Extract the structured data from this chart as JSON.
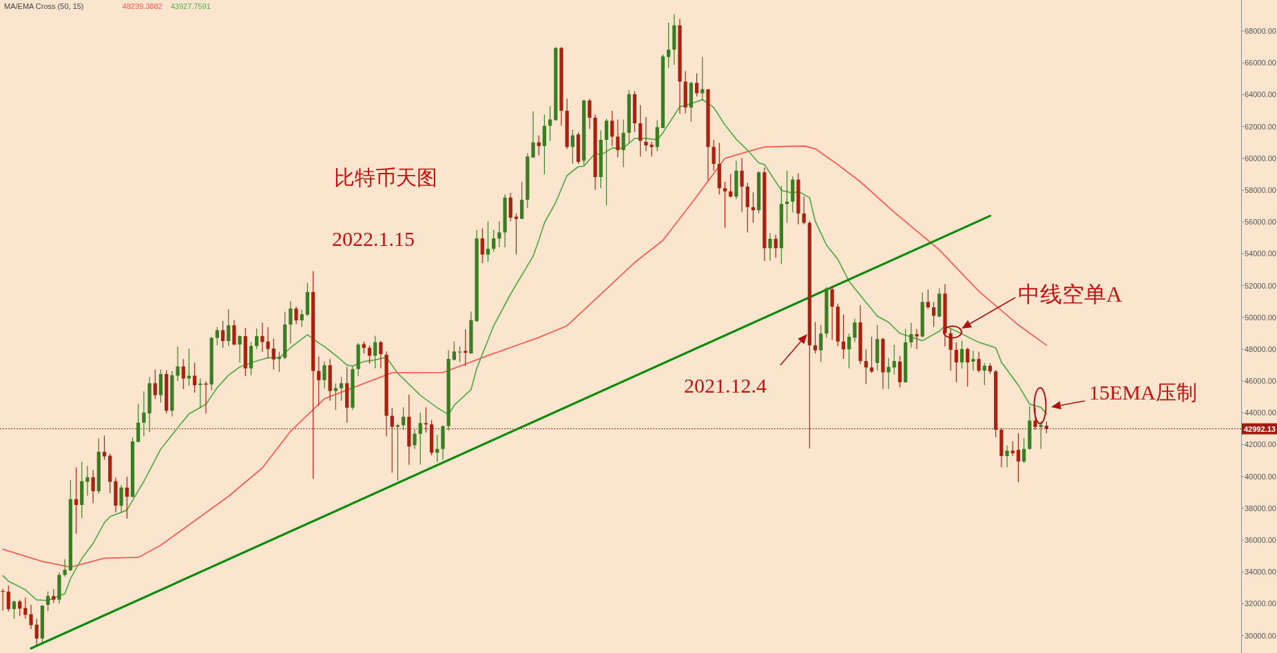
{
  "chart_data": {
    "type": "candlestick",
    "title": "MA/EMA Cross (50, 15)",
    "categories": [
      null,
      null,
      null,
      null,
      null,
      null,
      null,
      null,
      null,
      null,
      null,
      null,
      null,
      null,
      null,
      null,
      null,
      null,
      null,
      null,
      null,
      null,
      null,
      null,
      null,
      null,
      null,
      null,
      null,
      null,
      null,
      null,
      null,
      null,
      null,
      null,
      null,
      null,
      null,
      null,
      null,
      null,
      null,
      null,
      null,
      null,
      null,
      null,
      null,
      null,
      null,
      null,
      null,
      null,
      null,
      null,
      null,
      null,
      null,
      null,
      null,
      null,
      null,
      null,
      null,
      null,
      null,
      null,
      null,
      null,
      null,
      null,
      null,
      null,
      null,
      null,
      null,
      null,
      null,
      null,
      null,
      null,
      null,
      null,
      null,
      null,
      null,
      null,
      null,
      null,
      null,
      null,
      null,
      null,
      null,
      null,
      null,
      null,
      null,
      null,
      null,
      null,
      null,
      null,
      null,
      null,
      null,
      null,
      null,
      null,
      null,
      null,
      null,
      null,
      null,
      null,
      null,
      null,
      null,
      null,
      null,
      null,
      null,
      null,
      null,
      null,
      null,
      null,
      null,
      null,
      null,
      null,
      null,
      null,
      null,
      null,
      null,
      null,
      null,
      null,
      null,
      null,
      null,
      null,
      null,
      null,
      null,
      null,
      null,
      null,
      null,
      null,
      null,
      null,
      null,
      null,
      null,
      null,
      null,
      null,
      null,
      null,
      null,
      null,
      null,
      null,
      null,
      null,
      null,
      null,
      null,
      null,
      null,
      null,
      null,
      null,
      null,
      null,
      null,
      null,
      null,
      null,
      null,
      null,
      null,
      null,
      null,
      null,
      null,
      null,
      null,
      null,
      null,
      null,
      null,
      null,
      null,
      null,
      null,
      null,
      null,
      null,
      null,
      null,
      null,
      null,
      null,
      null,
      null,
      null,
      null,
      null,
      null,
      null,
      null,
      null,
      null,
      null,
      null,
      null
    ],
    "ohlc": [
      [
        32800,
        32950,
        31570,
        32750
      ],
      [
        32760,
        33140,
        31510,
        31660
      ],
      [
        31660,
        32200,
        31040,
        32140
      ],
      [
        32140,
        32250,
        31230,
        31690
      ],
      [
        31730,
        32400,
        31070,
        31300
      ],
      [
        31340,
        31930,
        30410,
        30650
      ],
      [
        30680,
        31040,
        29420,
        29810
      ],
      [
        29810,
        31900,
        29580,
        31880
      ],
      [
        31930,
        32760,
        31540,
        32480
      ],
      [
        32480,
        32920,
        32040,
        32250
      ],
      [
        32250,
        33970,
        32010,
        33810
      ],
      [
        33810,
        34800,
        33700,
        34130
      ],
      [
        34100,
        39770,
        34050,
        38570
      ],
      [
        38570,
        40560,
        36400,
        38210
      ],
      [
        38210,
        40920,
        37370,
        39700
      ],
      [
        39660,
        40670,
        38790,
        39950
      ],
      [
        39950,
        40400,
        38320,
        39070
      ],
      [
        39070,
        42390,
        38910,
        41550
      ],
      [
        41550,
        42570,
        41030,
        41260
      ],
      [
        41300,
        41450,
        38940,
        39660
      ],
      [
        39700,
        39930,
        37730,
        38160
      ],
      [
        38160,
        39460,
        37730,
        39300
      ],
      [
        39300,
        39980,
        37340,
        38720
      ],
      [
        38720,
        42440,
        38700,
        42200
      ],
      [
        42170,
        44560,
        42170,
        43380
      ],
      [
        43380,
        45340,
        42520,
        44010
      ],
      [
        43960,
        46250,
        42800,
        45860
      ],
      [
        45860,
        46720,
        44870,
        45110
      ],
      [
        45110,
        46720,
        44640,
        46440
      ],
      [
        46440,
        46680,
        43960,
        44130
      ],
      [
        44130,
        46630,
        43770,
        46360
      ],
      [
        46330,
        48170,
        46000,
        46910
      ],
      [
        46910,
        47380,
        45500,
        46160
      ],
      [
        46160,
        48040,
        45690,
        46330
      ],
      [
        46330,
        47150,
        45260,
        45730
      ],
      [
        45750,
        46160,
        44280,
        45840
      ],
      [
        45840,
        45970,
        43960,
        45770
      ],
      [
        45780,
        48790,
        45420,
        48710
      ],
      [
        48710,
        49390,
        48240,
        49190
      ],
      [
        49190,
        49770,
        48090,
        48510
      ],
      [
        48510,
        50520,
        48200,
        49500
      ],
      [
        49500,
        49840,
        48240,
        48290
      ],
      [
        48290,
        48870,
        47150,
        48820
      ],
      [
        48820,
        49340,
        46310,
        46790
      ],
      [
        46790,
        48450,
        46360,
        48200
      ],
      [
        48200,
        49300,
        48010,
        48820
      ],
      [
        48820,
        49660,
        47820,
        48450
      ],
      [
        48480,
        49390,
        47410,
        48010
      ],
      [
        48040,
        48670,
        46720,
        47350
      ],
      [
        47380,
        47820,
        46570,
        47510
      ],
      [
        47460,
        50360,
        47380,
        49550
      ],
      [
        49550,
        51020,
        48350,
        50550
      ],
      [
        50550,
        50680,
        49580,
        49810
      ],
      [
        49810,
        50490,
        49390,
        50200
      ],
      [
        50170,
        52170,
        50080,
        51590
      ],
      [
        51590,
        52900,
        39850,
        46630
      ],
      [
        46630,
        47540,
        44430,
        46050
      ],
      [
        46050,
        47220,
        45530,
        46990
      ],
      [
        46990,
        47380,
        44750,
        45370
      ],
      [
        45370,
        45840,
        44170,
        45550
      ],
      [
        45550,
        46250,
        44750,
        45860
      ],
      [
        45860,
        46880,
        43380,
        44320
      ],
      [
        44320,
        46910,
        44170,
        46750
      ],
      [
        46750,
        48400,
        46310,
        48290
      ],
      [
        48320,
        48480,
        47730,
        48080
      ],
      [
        48080,
        48240,
        47090,
        47590
      ],
      [
        47590,
        48840,
        46790,
        48440
      ],
      [
        48440,
        48520,
        46790,
        47690
      ],
      [
        47650,
        47850,
        42520,
        43810
      ],
      [
        43810,
        44310,
        40230,
        43120
      ],
      [
        43120,
        43310,
        39740,
        43220
      ],
      [
        43220,
        44350,
        42920,
        43750
      ],
      [
        43750,
        45140,
        40730,
        41880
      ],
      [
        41960,
        42960,
        41730,
        42680
      ],
      [
        42680,
        44010,
        40770,
        43350
      ],
      [
        43350,
        44350,
        42760,
        43270
      ],
      [
        43270,
        43550,
        41330,
        41490
      ],
      [
        41490,
        42620,
        40890,
        41730
      ],
      [
        41730,
        43220,
        41030,
        43160
      ],
      [
        43160,
        47930,
        42880,
        47390
      ],
      [
        47330,
        48480,
        47290,
        47850
      ],
      [
        47790,
        48180,
        47190,
        47850
      ],
      [
        47890,
        49240,
        46930,
        47770
      ],
      [
        47730,
        50370,
        47730,
        49830
      ],
      [
        49770,
        55500,
        49710,
        54960
      ],
      [
        54960,
        55600,
        53410,
        53950
      ],
      [
        53950,
        56040,
        53490,
        54310
      ],
      [
        54310,
        55500,
        54150,
        54960
      ],
      [
        54960,
        56040,
        54410,
        55340
      ],
      [
        55340,
        57730,
        54410,
        57530
      ],
      [
        57530,
        57820,
        56040,
        56270
      ],
      [
        56330,
        56530,
        53950,
        56190
      ],
      [
        56190,
        58520,
        56190,
        57390
      ],
      [
        57390,
        60310,
        56870,
        60110
      ],
      [
        60050,
        62950,
        60010,
        61000
      ],
      [
        61000,
        61440,
        60170,
        60770
      ],
      [
        60770,
        62750,
        58980,
        62040
      ],
      [
        62040,
        63290,
        61100,
        62440
      ],
      [
        62400,
        67010,
        62360,
        66930
      ],
      [
        66930,
        67010,
        62040,
        62990
      ],
      [
        62990,
        63750,
        60570,
        60710
      ],
      [
        60710,
        61800,
        59650,
        61440
      ],
      [
        61500,
        61640,
        59650,
        59770
      ],
      [
        59850,
        63690,
        59570,
        63630
      ],
      [
        63630,
        63750,
        61840,
        62550
      ],
      [
        62550,
        62750,
        58020,
        58820
      ],
      [
        58820,
        61760,
        58120,
        61160
      ],
      [
        61160,
        62490,
        57030,
        62360
      ],
      [
        62360,
        62990,
        60770,
        61360
      ],
      [
        61360,
        62440,
        60050,
        60510
      ],
      [
        60510,
        62440,
        59450,
        61600
      ],
      [
        61600,
        64280,
        60960,
        64030
      ],
      [
        64030,
        64220,
        61640,
        62200
      ],
      [
        62200,
        63350,
        60110,
        61100
      ],
      [
        61040,
        62590,
        60450,
        60810
      ],
      [
        60850,
        61040,
        60110,
        60710
      ],
      [
        60710,
        62400,
        60450,
        61960
      ],
      [
        61900,
        66530,
        61900,
        66410
      ],
      [
        66370,
        68520,
        65680,
        66830
      ],
      [
        66830,
        69050,
        65870,
        68360
      ],
      [
        68360,
        68760,
        62790,
        64820
      ],
      [
        64820,
        65480,
        62830,
        63190
      ],
      [
        63190,
        64820,
        62300,
        64740
      ],
      [
        64740,
        65340,
        63890,
        64090
      ],
      [
        64090,
        66370,
        63630,
        64340
      ],
      [
        64340,
        64340,
        58620,
        60710
      ],
      [
        60710,
        61160,
        59220,
        59650
      ],
      [
        59650,
        60960,
        57730,
        58120
      ],
      [
        58120,
        58520,
        55640,
        57920
      ],
      [
        57920,
        59020,
        57530,
        57590
      ],
      [
        57590,
        59850,
        57430,
        59220
      ],
      [
        59220,
        60010,
        56630,
        58220
      ],
      [
        58220,
        58460,
        55340,
        56930
      ],
      [
        56930,
        57860,
        55940,
        56730
      ],
      [
        56730,
        59180,
        56530,
        59120
      ],
      [
        59120,
        59410,
        53550,
        54350
      ],
      [
        54350,
        55280,
        53550,
        54940
      ],
      [
        54940,
        55200,
        53750,
        54350
      ],
      [
        54350,
        58260,
        53350,
        57130
      ],
      [
        57130,
        59220,
        55940,
        57270
      ],
      [
        57270,
        58860,
        56590,
        58660
      ],
      [
        58660,
        59060,
        55840,
        56530
      ],
      [
        56530,
        57590,
        55840,
        55940
      ],
      [
        55940,
        56040,
        41760,
        48240
      ],
      [
        48240,
        49710,
        47730,
        47930
      ],
      [
        47930,
        49520,
        47190,
        48980
      ],
      [
        48980,
        51900,
        48720,
        51820
      ],
      [
        51760,
        51960,
        48580,
        50670
      ],
      [
        50670,
        50870,
        48190,
        48480
      ],
      [
        48480,
        50170,
        47390,
        47990
      ],
      [
        47990,
        48980,
        46790,
        48780
      ],
      [
        48720,
        49910,
        48440,
        49680
      ],
      [
        49680,
        50770,
        47050,
        47250
      ],
      [
        47250,
        47990,
        45800,
        46850
      ],
      [
        46850,
        48780,
        46500,
        46590
      ],
      [
        47130,
        49520,
        46650,
        48640
      ],
      [
        48640,
        48720,
        45500,
        46540
      ],
      [
        46540,
        47450,
        45500,
        46890
      ],
      [
        46850,
        48280,
        46400,
        47250
      ],
      [
        47220,
        47560,
        45600,
        45920
      ],
      [
        45920,
        49270,
        45900,
        48430
      ],
      [
        48430,
        49660,
        48090,
        48950
      ],
      [
        48950,
        49270,
        48010,
        48800
      ],
      [
        48800,
        51570,
        48740,
        50970
      ],
      [
        50970,
        51750,
        50520,
        50630
      ],
      [
        50630,
        50970,
        49400,
        50100
      ],
      [
        50050,
        51830,
        50000,
        51490
      ],
      [
        51490,
        52090,
        48170,
        49000
      ],
      [
        49000,
        49270,
        46650,
        47960
      ],
      [
        47960,
        48430,
        45920,
        47170
      ],
      [
        47170,
        48530,
        46780,
        48010
      ],
      [
        48010,
        48090,
        45650,
        47170
      ],
      [
        47220,
        47900,
        46650,
        47380
      ],
      [
        47380,
        47830,
        46520,
        46650
      ],
      [
        46650,
        47120,
        45730,
        46960
      ],
      [
        46960,
        47120,
        46440,
        46600
      ],
      [
        46600,
        46700,
        42460,
        42930
      ],
      [
        42930,
        43040,
        40570,
        41280
      ],
      [
        41280,
        41940,
        40570,
        41620
      ],
      [
        41620,
        42200,
        41280,
        41460
      ],
      [
        41670,
        42720,
        39630,
        40940
      ],
      [
        40940,
        42410,
        40840,
        41730
      ],
      [
        41730,
        44420,
        41670,
        43510
      ],
      [
        43510,
        44340,
        42930,
        43110
      ],
      [
        43110,
        43450,
        41730,
        43240
      ],
      [
        43190,
        43450,
        42720,
        42992.13
      ],
      null,
      null,
      null,
      null,
      null,
      null,
      null,
      null,
      null,
      null,
      null,
      null,
      null,
      null,
      null,
      null,
      null,
      null,
      null,
      null,
      null,
      null,
      null,
      null,
      null,
      null,
      null,
      null,
      null,
      null,
      null,
      null,
      null,
      null
    ],
    "colors": [
      "#a8220e",
      "#a8220e",
      "#3a7d22",
      "#a8220e",
      "#a8220e",
      "#a8220e",
      "#a8220e",
      "#3a7d22",
      "#3a7d22",
      "#a8220e",
      "#3a7d22",
      "#3a7d22",
      "#3a7d22",
      "#a8220e",
      "#3a7d22",
      "#3a7d22",
      "#a8220e",
      "#3a7d22",
      "#a8220e",
      "#a8220e",
      "#a8220e",
      "#3a7d22",
      "#a8220e",
      "#3a7d22",
      "#3a7d22",
      "#3a7d22",
      "#3a7d22",
      "#a8220e",
      "#3a7d22",
      "#a8220e",
      "#3a7d22",
      "#3a7d22",
      "#a8220e",
      "#3a7d22",
      "#a8220e",
      "#3a7d22",
      "#a8220e",
      "#3a7d22",
      "#3a7d22",
      "#a8220e",
      "#3a7d22",
      "#a8220e",
      "#3a7d22",
      "#a8220e",
      "#3a7d22",
      "#3a7d22",
      "#a8220e",
      "#a8220e",
      "#a8220e",
      "#3a7d22",
      "#3a7d22",
      "#3a7d22",
      "#a8220e",
      "#3a7d22",
      "#3a7d22",
      "#a8220e",
      "#a8220e",
      "#3a7d22",
      "#a8220e",
      "#3a7d22",
      "#3a7d22",
      "#a8220e",
      "#3a7d22",
      "#3a7d22",
      "#a8220e",
      "#a8220e",
      "#3a7d22",
      "#a8220e",
      "#a8220e",
      "#a8220e",
      "#3a7d22",
      "#3a7d22",
      "#a8220e",
      "#3a7d22",
      "#3a7d22",
      "#a8220e",
      "#a8220e",
      "#3a7d22",
      "#3a7d22",
      "#3a7d22",
      "#3a7d22",
      "#3a7d22",
      "#a8220e",
      "#3a7d22",
      "#3a7d22",
      "#a8220e",
      "#3a7d22",
      "#3a7d22",
      "#3a7d22",
      "#3a7d22",
      "#a8220e",
      "#a8220e",
      "#3a7d22",
      "#3a7d22",
      "#3a7d22",
      "#a8220e",
      "#3a7d22",
      "#3a7d22",
      "#3a7d22",
      "#a8220e",
      "#a8220e",
      "#3a7d22",
      "#a8220e",
      "#3a7d22",
      "#a8220e",
      "#a8220e",
      "#3a7d22",
      "#3a7d22",
      "#a8220e",
      "#a8220e",
      "#3a7d22",
      "#3a7d22",
      "#a8220e",
      "#a8220e",
      "#a8220e",
      "#a8220e",
      "#3a7d22",
      "#3a7d22",
      "#3a7d22",
      "#3a7d22",
      "#a8220e",
      "#a8220e",
      "#3a7d22",
      "#a8220e",
      "#3a7d22",
      "#a8220e",
      "#a8220e",
      "#a8220e",
      "#a8220e",
      "#a8220e",
      "#3a7d22",
      "#a8220e",
      "#a8220e",
      "#a8220e",
      "#3a7d22",
      "#a8220e",
      "#3a7d22",
      "#a8220e",
      "#3a7d22",
      "#3a7d22",
      "#3a7d22",
      "#a8220e",
      "#a8220e",
      "#a8220e",
      "#a8220e",
      "#3a7d22",
      "#3a7d22",
      "#a8220e",
      "#a8220e",
      "#a8220e",
      "#3a7d22",
      "#3a7d22",
      "#a8220e",
      "#a8220e",
      "#a8220e",
      "#3a7d22",
      "#a8220e",
      "#3a7d22",
      "#3a7d22",
      "#a8220e",
      "#3a7d22",
      "#3a7d22",
      "#a8220e",
      "#3a7d22",
      "#a8220e",
      "#a8220e",
      "#3a7d22",
      "#a8220e",
      "#a8220e",
      "#a8220e",
      "#3a7d22",
      "#a8220e",
      "#3a7d22",
      "#a8220e",
      "#3a7d22",
      "#a8220e",
      "#a8220e",
      "#a8220e",
      "#3a7d22",
      "#a8220e",
      "#a8220e",
      "#3a7d22",
      "#3a7d22",
      "#a8220e",
      "#3a7d22",
      "#a8220e",
      null,
      null,
      null,
      null,
      null,
      null,
      null,
      null,
      null,
      null,
      null,
      null,
      null,
      null,
      null,
      null,
      null,
      null,
      null,
      null,
      null,
      null,
      null,
      null,
      null,
      null,
      null,
      null,
      null,
      null,
      null,
      null,
      null,
      null
    ],
    "series": [
      {
        "type": "line",
        "name": "48239.3882",
        "color": "#ff5a52",
        "values": [
          35420,
          null,
          null,
          null,
          null,
          null,
          null,
          34650,
          null,
          null,
          null,
          null,
          34300,
          null,
          null,
          null,
          null,
          null,
          34860,
          null,
          null,
          null,
          null,
          null,
          34910,
          null,
          null,
          null,
          35680,
          null,
          null,
          null,
          null,
          null,
          37210,
          null,
          null,
          null,
          null,
          null,
          38750,
          null,
          null,
          null,
          null,
          null,
          40540,
          null,
          null,
          null,
          null,
          42840,
          null,
          null,
          null,
          null,
          null,
          44880,
          null,
          null,
          null,
          null,
          null,
          45710,
          null,
          null,
          null,
          null,
          null,
          46520,
          null,
          null,
          null,
          null,
          null,
          null,
          null,
          null,
          46530,
          null,
          null,
          null,
          null,
          null,
          null,
          null,
          47600,
          null,
          null,
          null,
          null,
          null,
          null,
          null,
          null,
          48740,
          null,
          null,
          null,
          null,
          49470,
          null,
          null,
          null,
          null,
          null,
          null,
          null,
          null,
          null,
          null,
          null,
          53450,
          null,
          null,
          null,
          null,
          54840,
          null,
          null,
          null,
          null,
          null,
          57610,
          null,
          null,
          null,
          null,
          60000,
          null,
          null,
          null,
          60420,
          null,
          null,
          60710,
          null,
          null,
          null,
          null,
          null,
          null,
          60770,
          null,
          60600,
          null,
          null,
          null,
          59600,
          null,
          null,
          null,
          58520,
          null,
          null,
          null,
          null,
          null,
          56610,
          null,
          null,
          null,
          null,
          null,
          null,
          null,
          54240,
          null,
          null,
          null,
          null,
          null,
          null,
          51640,
          null,
          null,
          null,
          null,
          null,
          null,
          49520,
          null,
          null,
          null,
          null,
          48240,
          null,
          null,
          null,
          null,
          null,
          null,
          null,
          null,
          null,
          null,
          null,
          null,
          null,
          null,
          null,
          null,
          null,
          null,
          null,
          null,
          null,
          null,
          null,
          null,
          null,
          null,
          null,
          null,
          null,
          null,
          null,
          null,
          null,
          null
        ]
      },
      {
        "type": "line",
        "name": "43927.7591",
        "color": "#5aab4a",
        "values": [
          33760,
          33420,
          null,
          null,
          32870,
          null,
          32240,
          null,
          32200,
          null,
          null,
          32630,
          33580,
          null,
          34840,
          null,
          35790,
          null,
          37090,
          37480,
          null,
          37740,
          37890,
          null,
          null,
          39690,
          null,
          null,
          41720,
          null,
          null,
          43060,
          null,
          43930,
          null,
          null,
          44540,
          null,
          45580,
          null,
          46360,
          null,
          46880,
          null,
          null,
          47260,
          null,
          47460,
          null,
          47460,
          null,
          48090,
          null,
          null,
          48910,
          null,
          48390,
          48170,
          null,
          47610,
          null,
          47000,
          46940,
          null,
          47220,
          null,
          47330,
          null,
          47480,
          null,
          46490,
          null,
          null,
          null,
          45100,
          null,
          null,
          44320,
          null,
          43880,
          44470,
          null,
          null,
          45460,
          46790,
          null,
          null,
          49470,
          null,
          null,
          51460,
          null,
          null,
          null,
          53850,
          54840,
          55940,
          null,
          57220,
          null,
          58910,
          null,
          59470,
          59510,
          null,
          60310,
          60210,
          null,
          60640,
          null,
          60640,
          null,
          61250,
          null,
          61250,
          null,
          61160,
          61600,
          null,
          null,
          63240,
          null,
          63430,
          null,
          63690,
          null,
          63190,
          null,
          62100,
          null,
          61200,
          null,
          60510,
          null,
          59710,
          59610,
          null,
          null,
          57980,
          null,
          57820,
          57920,
          null,
          57520,
          56050,
          null,
          54540,
          null,
          53650,
          null,
          52260,
          null,
          51380,
          null,
          null,
          50080,
          null,
          49690,
          null,
          49000,
          null,
          null,
          null,
          48530,
          null,
          null,
          49130,
          49470,
          null,
          49130,
          null,
          null,
          null,
          48430,
          null,
          null,
          48090,
          47180,
          null,
          null,
          45740,
          null,
          44550,
          null,
          44340,
          43930,
          null,
          null,
          null,
          null,
          null,
          null,
          null,
          null,
          null,
          null,
          null,
          null,
          null,
          null,
          null,
          null,
          null,
          null,
          null,
          null,
          null,
          null,
          null,
          null,
          null,
          null,
          null,
          null,
          null,
          null,
          null,
          null,
          null,
          null
        ]
      },
      {
        "type": "line",
        "color": "#0a8a0a",
        "values": [
          null,
          null,
          null,
          null,
          null,
          29190,
          null,
          null,
          null,
          null,
          null,
          null,
          null,
          null,
          null,
          null,
          null,
          null,
          null,
          null,
          null,
          null,
          null,
          null,
          null,
          null,
          null,
          null,
          null,
          null,
          null,
          null,
          null,
          null,
          null,
          null,
          null,
          null,
          null,
          null,
          null,
          null,
          null,
          null,
          null,
          null,
          null,
          null,
          null,
          null,
          null,
          null,
          null,
          null,
          null,
          null,
          null,
          null,
          null,
          null,
          null,
          null,
          null,
          null,
          null,
          null,
          null,
          null,
          null,
          null,
          null,
          null,
          null,
          null,
          null,
          null,
          null,
          null,
          null,
          null,
          null,
          null,
          null,
          null,
          null,
          null,
          null,
          null,
          null,
          null,
          null,
          null,
          null,
          null,
          null,
          null,
          null,
          null,
          null,
          null,
          null,
          null,
          null,
          null,
          null,
          null,
          null,
          null,
          null,
          null,
          null,
          null,
          null,
          null,
          null,
          null,
          null,
          null,
          null,
          null,
          null,
          null,
          null,
          null,
          null,
          null,
          null,
          null,
          null,
          null,
          null,
          null,
          null,
          null,
          null,
          null,
          null,
          null,
          null,
          null,
          null,
          null,
          null,
          null,
          null,
          null,
          null,
          null,
          null,
          null,
          null,
          null,
          null,
          null,
          null,
          null,
          null,
          null,
          null,
          null,
          null,
          null,
          null,
          null,
          null,
          null,
          null,
          null,
          null,
          null,
          null,
          null,
          null,
          null,
          null,
          56380,
          null,
          null,
          null,
          null,
          null,
          null,
          null,
          null,
          null,
          null,
          null,
          null,
          null,
          null,
          null,
          null,
          null,
          null,
          null,
          null,
          null,
          null,
          null,
          null,
          null,
          null,
          null,
          null,
          null,
          null,
          null,
          null,
          null,
          null,
          null,
          null,
          null,
          null,
          null,
          null,
          null,
          null,
          null,
          null
        ]
      }
    ],
    "ylim": [
      28900,
      69950
    ],
    "yticks": [
      {
        "value": 30000,
        "label": "30000.00"
      },
      {
        "value": 32000,
        "label": "32000.00"
      },
      {
        "value": 34000,
        "label": "34000.00"
      },
      {
        "value": 36000,
        "label": "36000.00"
      },
      {
        "value": 38000,
        "label": "38000.00"
      },
      {
        "value": 40000,
        "label": "40000.00"
      },
      {
        "value": 42000,
        "label": "42000.00"
      },
      {
        "value": 44000,
        "label": "44000.00"
      },
      {
        "value": 46000,
        "label": "46000.00"
      },
      {
        "value": 48000,
        "label": "48000.00"
      },
      {
        "value": 50000,
        "label": "50000.00"
      },
      {
        "value": 52000,
        "label": "52000.00"
      },
      {
        "value": 54000,
        "label": "54000.00"
      },
      {
        "value": 56000,
        "label": "56000.00"
      },
      {
        "value": 58000,
        "label": "58000.00"
      },
      {
        "value": 60000,
        "label": "60000.00"
      },
      {
        "value": 62000,
        "label": "62000.00"
      },
      {
        "value": 64000,
        "label": "64000.00"
      },
      {
        "value": 66000,
        "label": "66000.00"
      },
      {
        "value": 68000,
        "label": "68000.00"
      }
    ],
    "ref_lines": [
      {
        "axis": "y",
        "value": 42992.13,
        "label": "42992.13",
        "color": "#a31a0a",
        "line_style": "dotted"
      }
    ],
    "annotations": [
      "比特币天图",
      "2022.1.15",
      "2021.12.4",
      "中线空单A",
      "15EMA压制"
    ]
  }
}
